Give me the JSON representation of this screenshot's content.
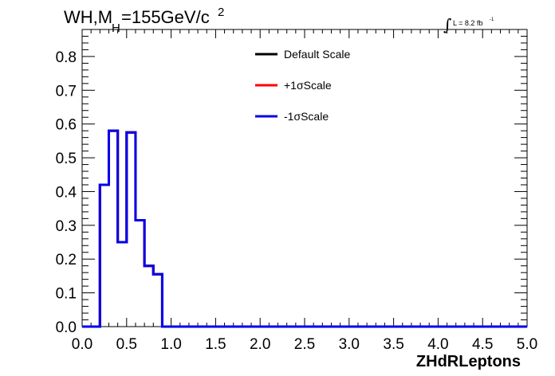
{
  "chart_data": {
    "type": "line",
    "title_main": "WH,M",
    "title_sub": "H",
    "title_rest": "=155GeV/c",
    "title_sup": "2",
    "lumi_label": "L = 8.2 fb",
    "lumi_sup": "-1",
    "xlabel": "ZHdRLeptons",
    "xlim": [
      0.0,
      5.0
    ],
    "ylim": [
      0.0,
      0.88
    ],
    "x_ticks": [
      "0.0",
      "0.5",
      "1.0",
      "1.5",
      "2.0",
      "2.5",
      "3.0",
      "3.5",
      "4.0",
      "4.5",
      "5.0"
    ],
    "y_ticks": [
      "0.0",
      "0.1",
      "0.2",
      "0.3",
      "0.4",
      "0.5",
      "0.6",
      "0.7",
      "0.8"
    ],
    "legend_position": "top-center",
    "bin_edges": [
      0.0,
      0.1,
      0.2,
      0.3,
      0.4,
      0.5,
      0.6,
      0.7,
      0.8,
      0.9,
      1.0,
      5.0
    ],
    "series": [
      {
        "name": "Default Scale",
        "color": "#000000",
        "values": [
          0,
          0,
          0.42,
          0.58,
          0.25,
          0.575,
          0.315,
          0.18,
          0.155,
          0,
          0
        ]
      },
      {
        "name": "+1σScale",
        "color": "#ff0000",
        "values": [
          0,
          0,
          0.42,
          0.58,
          0.25,
          0.575,
          0.315,
          0.18,
          0.155,
          0,
          0
        ]
      },
      {
        "name": "-1σScale",
        "color": "#0000ee",
        "values": [
          0,
          0,
          0.42,
          0.58,
          0.25,
          0.575,
          0.315,
          0.18,
          0.155,
          0,
          0
        ]
      }
    ]
  }
}
